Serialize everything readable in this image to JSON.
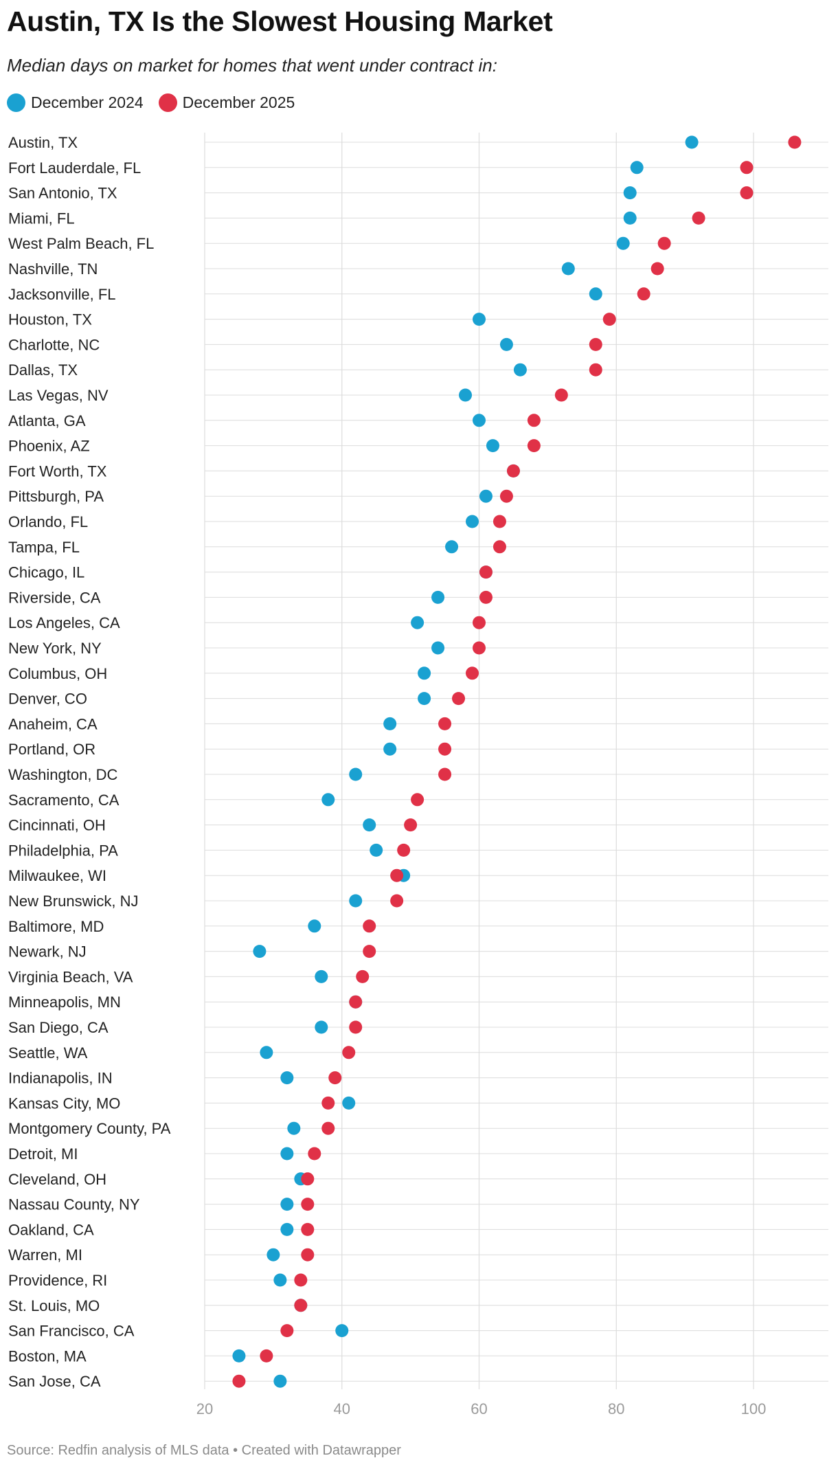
{
  "title": "Austin, TX Is the Slowest Housing Market",
  "subtitle": "Median days on market for homes that went under contract in:",
  "colors": {
    "dec2024": "#1aa1d1",
    "dec2025": "#e03147",
    "grid": "#dcdcdc",
    "tick": "#9a9a9a"
  },
  "chart_data": {
    "type": "scatter",
    "style": "dot-plot",
    "title": "Austin, TX Is the Slowest Housing Market",
    "subtitle": "Median days on market for homes that went under contract in:",
    "xlim": [
      20,
      108
    ],
    "xticks": [
      20,
      40,
      60,
      80,
      100
    ],
    "grid": true,
    "legend": "top-left",
    "categories": [
      "Austin, TX",
      "Fort Lauderdale, FL",
      "San Antonio, TX",
      "Miami, FL",
      "West Palm Beach, FL",
      "Nashville, TN",
      "Jacksonville, FL",
      "Houston, TX",
      "Charlotte, NC",
      "Dallas, TX",
      "Las Vegas, NV",
      "Atlanta, GA",
      "Phoenix, AZ",
      "Fort Worth, TX",
      "Pittsburgh, PA",
      "Orlando, FL",
      "Tampa, FL",
      "Chicago, IL",
      "Riverside, CA",
      "Los Angeles, CA",
      "New York, NY",
      "Columbus, OH",
      "Denver, CO",
      "Anaheim, CA",
      "Portland, OR",
      "Washington, DC",
      "Sacramento, CA",
      "Cincinnati, OH",
      "Philadelphia, PA",
      "Milwaukee, WI",
      "New Brunswick, NJ",
      "Baltimore, MD",
      "Newark, NJ",
      "Virginia Beach, VA",
      "Minneapolis, MN",
      "San Diego, CA",
      "Seattle, WA",
      "Indianapolis, IN",
      "Kansas City, MO",
      "Montgomery County, PA",
      "Detroit, MI",
      "Cleveland, OH",
      "Nassau County, NY",
      "Oakland, CA",
      "Warren, MI",
      "Providence, RI",
      "St. Louis, MO",
      "San Francisco, CA",
      "Boston, MA",
      "San Jose, CA"
    ],
    "series": [
      {
        "name": "December 2024",
        "color": "#1aa1d1",
        "values": [
          91,
          83,
          82,
          82,
          81,
          73,
          77,
          60,
          64,
          66,
          58,
          60,
          62,
          65,
          61,
          59,
          56,
          61,
          54,
          51,
          54,
          52,
          52,
          47,
          47,
          42,
          38,
          44,
          45,
          49,
          42,
          36,
          28,
          37,
          42,
          37,
          29,
          32,
          41,
          33,
          32,
          34,
          32,
          32,
          30,
          31,
          34,
          40,
          25,
          31
        ]
      },
      {
        "name": "December 2025",
        "color": "#e03147",
        "values": [
          106,
          99,
          99,
          92,
          87,
          86,
          84,
          79,
          77,
          77,
          72,
          68,
          68,
          65,
          64,
          63,
          63,
          61,
          61,
          60,
          60,
          59,
          57,
          55,
          55,
          55,
          51,
          50,
          49,
          48,
          48,
          44,
          44,
          43,
          42,
          42,
          41,
          39,
          38,
          38,
          36,
          35,
          35,
          35,
          35,
          34,
          34,
          32,
          29,
          25
        ]
      }
    ]
  },
  "footer": "Source: Redfin analysis of MLS data • Created with Datawrapper"
}
